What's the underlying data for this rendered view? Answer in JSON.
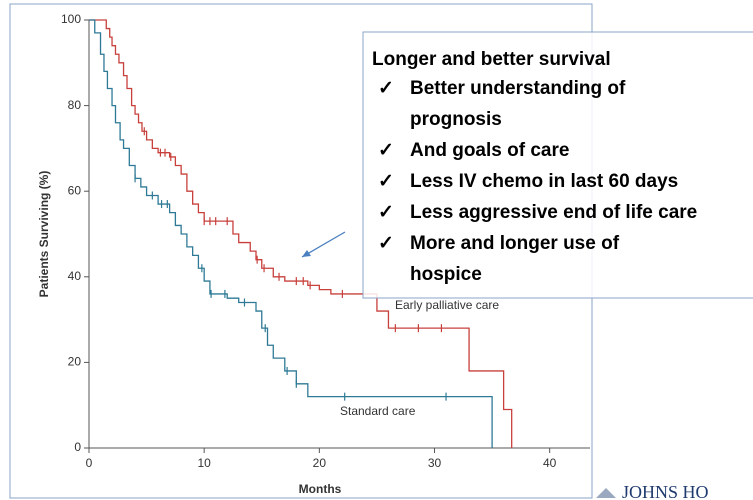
{
  "chart_data": {
    "type": "step",
    "ylabel": "Patients Surviving (%)",
    "xlabel": "Months",
    "xlim": [
      0,
      43.5
    ],
    "ylim": [
      0,
      100
    ],
    "xticks": [
      0,
      10,
      20,
      30,
      40
    ],
    "yticks": [
      0,
      20,
      40,
      60,
      80,
      100
    ],
    "series": [
      {
        "name": "Early palliative care",
        "color": "#c8403c",
        "x": [
          0,
          1.5,
          1.8,
          2,
          2.3,
          2.6,
          3,
          3.3,
          3.7,
          4,
          4.3,
          4.6,
          5,
          5.5,
          6,
          7,
          7.5,
          8,
          8.5,
          9,
          9.5,
          10,
          12.5,
          13,
          14,
          14.5,
          15,
          16,
          17,
          19,
          20,
          21,
          25,
          26,
          33,
          36,
          36.7
        ],
        "values": [
          100,
          98,
          96,
          94,
          92,
          90,
          87,
          84,
          80,
          78,
          76,
          74,
          72,
          70,
          69,
          68,
          66,
          64,
          60,
          57,
          55,
          53,
          50,
          48,
          46,
          44,
          42,
          40,
          39,
          38,
          37,
          36,
          32,
          28,
          18,
          9,
          0
        ],
        "censored": [
          4.8,
          6.2,
          6.6,
          7.1,
          10,
          10.5,
          11,
          12,
          14.6,
          15.2,
          16.5,
          18,
          18.6,
          19.2,
          22,
          26.6,
          28.6,
          30.6
        ]
      },
      {
        "name": "Standard care",
        "color": "#2e7a96",
        "x": [
          0,
          0.5,
          1,
          1.3,
          1.6,
          2,
          2.3,
          2.7,
          3,
          3.5,
          4,
          4.5,
          5,
          6,
          7,
          7.5,
          8,
          8.5,
          9,
          9.5,
          10,
          10.5,
          12,
          13,
          14.5,
          15,
          15.5,
          16,
          17,
          18,
          19,
          35
        ],
        "values": [
          100,
          97,
          92,
          88,
          84,
          80,
          76,
          72,
          70,
          66,
          63,
          61,
          59,
          57,
          55,
          52,
          50,
          47,
          45,
          42,
          39,
          36,
          35,
          34,
          32,
          28,
          24,
          21,
          18,
          15,
          12,
          0
        ],
        "censored": [
          4,
          5.5,
          6.3,
          6.8,
          9.8,
          10.6,
          11.8,
          13.5,
          15.3,
          17.2,
          18,
          22.2,
          31
        ]
      }
    ]
  },
  "callout": {
    "title": "Longer and better survival",
    "items": [
      [
        "Better understanding of",
        "prognosis"
      ],
      [
        "And goals of care"
      ],
      [
        "Less IV chemo in last 60 days"
      ],
      [
        "Less aggressive end of life care"
      ],
      [
        "More and longer use of",
        "hospice"
      ]
    ]
  },
  "logo": "JOHNS HO"
}
